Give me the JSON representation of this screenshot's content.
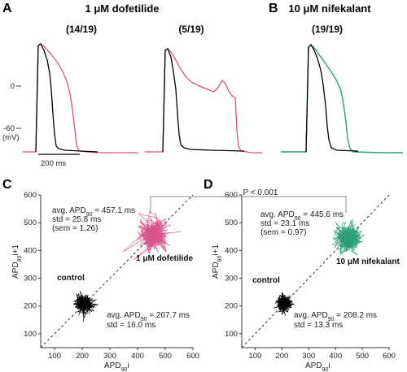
{
  "panel_labels": {
    "a": "A",
    "b": "B",
    "c": "C",
    "d": "D"
  },
  "panel_a": {
    "title": "1 μM dofetilide",
    "subtitle_left": "(14/19)",
    "subtitle_right": "(5/19)",
    "y_zero_label": "0",
    "y_neg_label": "-60",
    "y_unit": "(mV)",
    "scale_bar": "200 ms"
  },
  "panel_b": {
    "title": "10 μM nifekalant",
    "subtitle": "(19/19)"
  },
  "panel_c": {
    "xlabel_main": "APD",
    "xlabel_sub": "90",
    "xlabel_suffix": "i",
    "ylabel_main": "APD",
    "ylabel_sub": "90",
    "ylabel_suffix": "i+1",
    "ticks": [
      "100",
      "200",
      "300",
      "400",
      "500",
      "600"
    ],
    "drug_label": "1 μM dofetilide",
    "drug_stats": {
      "avg_prefix": "avg. APD",
      "avg_sub": "90",
      "avg_value": " = 457.1 ms",
      "std": "std = 25.8 ms",
      "sem": "(sem = 1.26)"
    },
    "control_label": "control",
    "control_stats": {
      "avg_prefix": "avg. APD",
      "avg_sub": "90",
      "avg_value": " = 207.7 ms",
      "std": "std = 16.0 ms"
    }
  },
  "panel_d": {
    "xlabel_main": "APD",
    "xlabel_sub": "90",
    "xlabel_suffix": "i",
    "ylabel_main": "APD",
    "ylabel_sub": "90",
    "ylabel_suffix": "i+1",
    "ticks": [
      "100",
      "200",
      "300",
      "400",
      "500",
      "600"
    ],
    "drug_label": "10 μM nifekalant",
    "drug_stats": {
      "avg_prefix": "avg. APD",
      "avg_sub": "90",
      "avg_value": " = 445.6 ms",
      "std": "std = 23.1 ms",
      "sem": "(sem = 0.97)"
    },
    "control_label": "control",
    "control_stats": {
      "avg_prefix": "avg. APD",
      "avg_sub": "90",
      "avg_value": " = 208.2 ms",
      "std": "std = 13.3 ms"
    }
  },
  "significance": "P < 0.001",
  "colors": {
    "dofetilide": "#d6558a",
    "nifekalant": "#2e9e76",
    "control": "#000000"
  },
  "chart_data": [
    {
      "type": "scatter",
      "xlabel": "APD90 i",
      "ylabel": "APD90 i+1",
      "xlim": [
        50,
        600
      ],
      "ylim": [
        50,
        600
      ],
      "series": [
        {
          "name": "1 μM dofetilide",
          "center": [
            457.1,
            457.1
          ],
          "std": 25.8
        },
        {
          "name": "control",
          "center": [
            207.7,
            207.7
          ],
          "std": 16.0
        }
      ]
    },
    {
      "type": "scatter",
      "xlabel": "APD90 i",
      "ylabel": "APD90 i+1",
      "xlim": [
        50,
        600
      ],
      "ylim": [
        50,
        600
      ],
      "series": [
        {
          "name": "10 μM nifekalant",
          "center": [
            445.6,
            445.6
          ],
          "std": 23.1
        },
        {
          "name": "control",
          "center": [
            208.2,
            208.2
          ],
          "std": 13.3
        }
      ]
    }
  ]
}
